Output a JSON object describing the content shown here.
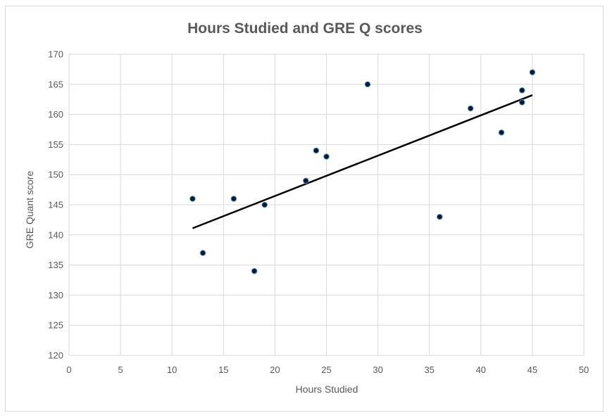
{
  "chart_data": {
    "type": "scatter",
    "title": "Hours Studied and GRE Q scores",
    "xlabel": "Hours Studied",
    "ylabel": "GRE Quant score",
    "xlim": [
      0,
      50
    ],
    "ylim": [
      120,
      170
    ],
    "x_ticks": [
      0,
      5,
      10,
      15,
      20,
      25,
      30,
      35,
      40,
      45,
      50
    ],
    "y_ticks": [
      120,
      125,
      130,
      135,
      140,
      145,
      150,
      155,
      160,
      165,
      170
    ],
    "grid": true,
    "legend": "none",
    "series": [
      {
        "points": [
          {
            "x": 12,
            "y": 146
          },
          {
            "x": 13,
            "y": 137
          },
          {
            "x": 16,
            "y": 146
          },
          {
            "x": 18,
            "y": 134
          },
          {
            "x": 19,
            "y": 145
          },
          {
            "x": 23,
            "y": 149
          },
          {
            "x": 24,
            "y": 154
          },
          {
            "x": 25,
            "y": 153
          },
          {
            "x": 29,
            "y": 165
          },
          {
            "x": 36,
            "y": 143
          },
          {
            "x": 39,
            "y": 161
          },
          {
            "x": 42,
            "y": 157
          },
          {
            "x": 44,
            "y": 164
          },
          {
            "x": 44,
            "y": 162
          },
          {
            "x": 45,
            "y": 167
          }
        ],
        "marker_color": "#0a1a33",
        "marker_outline": "#5b9bd5"
      }
    ],
    "trendline": {
      "type": "linear",
      "start": {
        "x": 12,
        "y": 141.1
      },
      "end": {
        "x": 45,
        "y": 163.2
      },
      "color": "#000000"
    },
    "colors": {
      "grid": "#d9d9d9",
      "text": "#595959",
      "border": "#d9d9d9"
    }
  }
}
